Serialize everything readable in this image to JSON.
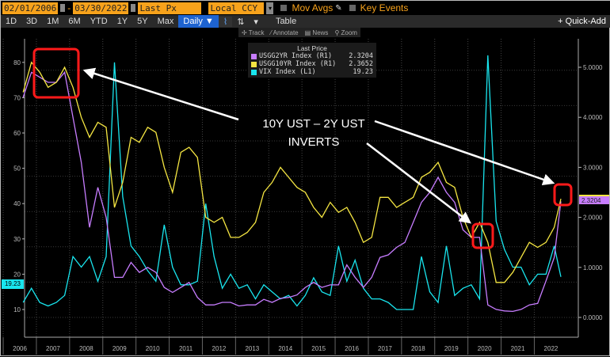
{
  "toolbar": {
    "start_date": "02/01/2006",
    "dash": "-",
    "end_date": "03/30/2022",
    "field": "Last Px",
    "currency": "Local CCY",
    "mov_avgs": "Mov Avgs",
    "key_events": "Key Events"
  },
  "periods": [
    "1D",
    "3D",
    "1M",
    "6M",
    "YTD",
    "1Y",
    "5Y",
    "Max"
  ],
  "frequency": "Daily ▼",
  "table_label": "Table",
  "quick_add": "+ Quick-Add",
  "subtools": [
    "✢ Track",
    "⁄ Annotate",
    "▤ News",
    "⚲ Zoom"
  ],
  "legend": {
    "header": "Last Price",
    "items": [
      {
        "label": "USGG2YR Index  (R1)",
        "value": "2.3204",
        "color": "#c77dff"
      },
      {
        "label": "USGG10YR Index  (R1)",
        "value": "2.3652",
        "color": "#f5e642"
      },
      {
        "label": "VIX Index  (L1)",
        "value": "19.23",
        "color": "#19e5ee"
      }
    ]
  },
  "annotation": {
    "line1": "10Y UST – 2Y UST",
    "line2": "INVERTS"
  },
  "tags": {
    "right": "2.3204",
    "left": "19.23"
  },
  "chart_data": {
    "type": "line",
    "x_ticks": [
      "2006",
      "2007",
      "2008",
      "2009",
      "2010",
      "2011",
      "2012",
      "2013",
      "2014",
      "2015",
      "2016",
      "2017",
      "2018",
      "2019",
      "2020",
      "2021",
      "2022"
    ],
    "left_ticks": [
      "10",
      "20",
      "30",
      "40",
      "50",
      "60",
      "70",
      "80"
    ],
    "right_ticks": [
      "0.0000",
      "1.0000",
      "2.0000",
      "3.0000",
      "4.0000",
      "5.0000"
    ],
    "series": [
      {
        "name": "USGG10YR Index",
        "axis": "right",
        "color": "#f5e642",
        "values": [
          4.5,
          5.1,
          4.9,
          4.6,
          4.7,
          5.0,
          4.6,
          4.0,
          3.6,
          3.9,
          3.8,
          2.2,
          2.7,
          3.6,
          3.5,
          3.8,
          3.7,
          3.0,
          2.5,
          3.3,
          3.4,
          3.2,
          2.0,
          1.9,
          2.0,
          1.6,
          1.6,
          1.7,
          1.9,
          2.5,
          2.7,
          3.0,
          2.8,
          2.6,
          2.5,
          2.2,
          2.0,
          2.3,
          2.1,
          2.2,
          1.9,
          1.5,
          1.6,
          2.4,
          2.4,
          2.2,
          2.3,
          2.4,
          2.8,
          2.9,
          3.1,
          2.7,
          2.6,
          2.0,
          1.6,
          1.9,
          1.5,
          0.7,
          0.7,
          0.9,
          1.2,
          1.5,
          1.4,
          1.5,
          1.8,
          2.37
        ]
      },
      {
        "name": "USGG2YR Index",
        "axis": "right",
        "color": "#c77dff",
        "values": [
          4.4,
          4.9,
          4.8,
          4.7,
          4.7,
          4.9,
          4.0,
          3.1,
          1.8,
          2.6,
          2.0,
          0.8,
          0.8,
          1.1,
          0.9,
          1.0,
          0.9,
          0.6,
          0.5,
          0.6,
          0.7,
          0.4,
          0.25,
          0.25,
          0.3,
          0.3,
          0.23,
          0.25,
          0.25,
          0.36,
          0.3,
          0.38,
          0.4,
          0.45,
          0.6,
          0.7,
          0.6,
          0.65,
          0.65,
          1.05,
          0.8,
          0.6,
          0.8,
          1.2,
          1.25,
          1.4,
          1.5,
          1.9,
          2.3,
          2.5,
          2.8,
          2.5,
          2.3,
          1.75,
          1.6,
          1.6,
          0.25,
          0.16,
          0.13,
          0.12,
          0.16,
          0.25,
          0.28,
          0.73,
          1.2,
          2.32
        ]
      },
      {
        "name": "VIX Index",
        "axis": "left",
        "color": "#19e5ee",
        "values": [
          12,
          16,
          12,
          11,
          12,
          14,
          25,
          22,
          25,
          18,
          25,
          80,
          42,
          28,
          25,
          21,
          18,
          34,
          22,
          17,
          17,
          18,
          40,
          25,
          16,
          20,
          16,
          17,
          13,
          17,
          15,
          13,
          14,
          11,
          14,
          19,
          15,
          14,
          28,
          18,
          24,
          16,
          13,
          13,
          12,
          10,
          10,
          10,
          25,
          15,
          12,
          28,
          14,
          16,
          17,
          13,
          82,
          35,
          27,
          22,
          22,
          17,
          20,
          20,
          28,
          19.23
        ]
      }
    ],
    "x_start": 2006.0,
    "x_step": 0.25,
    "left_range": [
      0,
      88
    ],
    "right_range": [
      -0.55,
      5.35
    ]
  }
}
